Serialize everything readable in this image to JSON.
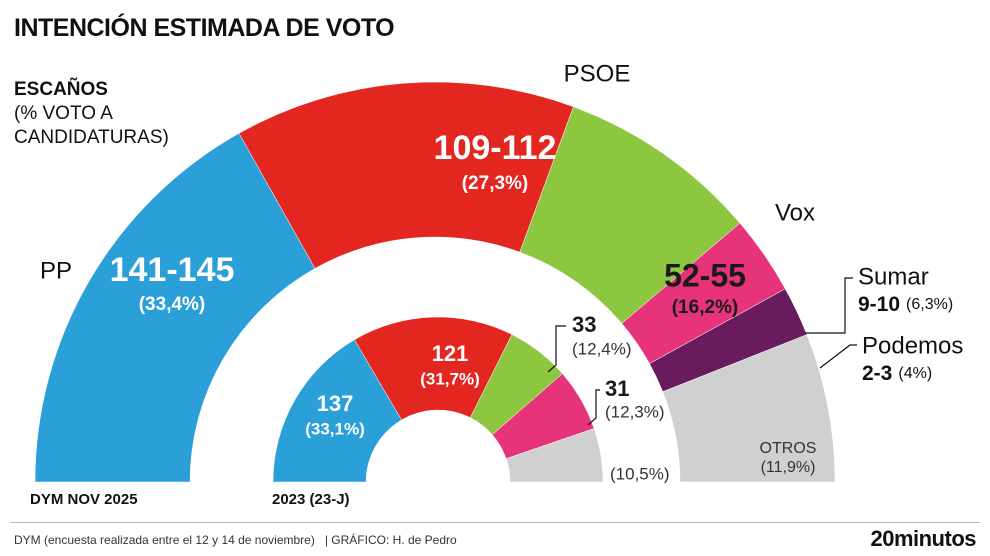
{
  "header": {
    "title": "INTENCIÓN ESTIMADA DE VOTO",
    "subtitle": "ESCAÑOS",
    "subtitle_note": "(% VOTO A CANDIDATURAS)"
  },
  "chart_data": [
    {
      "type": "half-donut",
      "label": "DYM NOV 2025",
      "categories": [
        "PP",
        "PSOE",
        "Vox",
        "Sumar",
        "Podemos",
        "OTROS"
      ],
      "seats": [
        "141-145",
        "109-112",
        "52-55",
        "9-10",
        "2-3",
        null
      ],
      "values": [
        33.4,
        27.3,
        16.2,
        6.3,
        4,
        11.9
      ],
      "value_labels": [
        "(33,4%)",
        "(27,3%)",
        "(16,2%)",
        "(6,3%)",
        "(4%)",
        "(11,9%)"
      ],
      "colors": [
        "#2a9fd8",
        "#e3261f",
        "#8dc63f",
        "#e6337a",
        "#6a1b5e",
        "#d0d0d0"
      ]
    },
    {
      "type": "half-donut",
      "label": "2023 (23-J)",
      "seats": [
        "137",
        "121",
        "33",
        "31",
        null
      ],
      "values": [
        33.1,
        31.7,
        12.4,
        12.3,
        10.5
      ],
      "value_labels": [
        "(33,1%)",
        "(31,7%)",
        "(12,4%)",
        "(12,3%)",
        "(10,5%)"
      ],
      "colors": [
        "#2a9fd8",
        "#e3261f",
        "#8dc63f",
        "#e6337a",
        "#d0d0d0"
      ]
    }
  ],
  "footer": {
    "source": "DYM (encuesta realizada entre el 12 y 14 de noviembre)",
    "credit": "| GRÁFICO: H. de Pedro",
    "brand": "20minutos"
  }
}
